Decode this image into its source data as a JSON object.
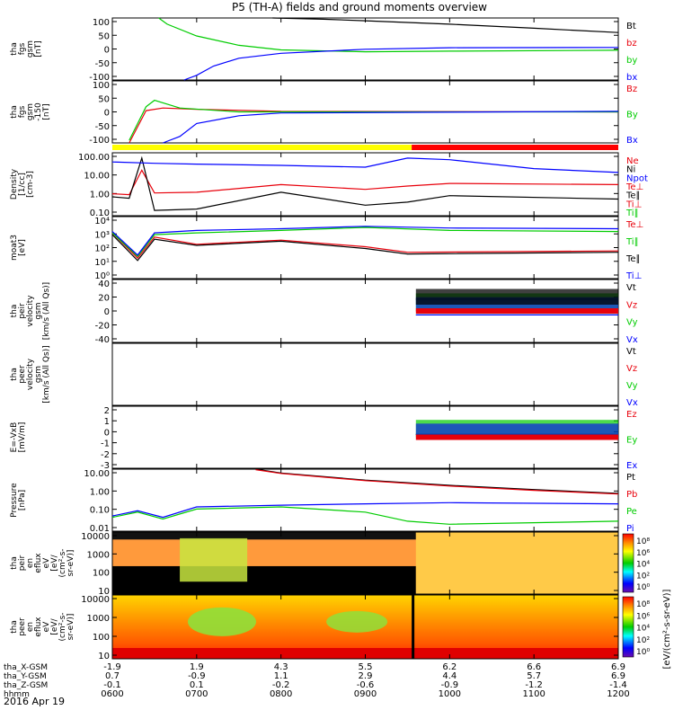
{
  "title": "P5 (TH-A) fields and ground moments overview",
  "date_label": "2016 Apr 19",
  "colors": {
    "black": "#000000",
    "red": "#e8000b",
    "green": "#00cc00",
    "blue": "#0000ff",
    "yellow": "#ffff00",
    "orange_red": "#ff0000",
    "cyan": "#00ffff"
  },
  "ephemeris": {
    "rows": [
      {
        "label": "tha_X-GSM",
        "values": [
          "-1.9",
          "1.9",
          "4.3",
          "5.5",
          "6.2",
          "6.6",
          "6.9"
        ]
      },
      {
        "label": "tha_Y-GSM",
        "values": [
          "0.7",
          "-0.9",
          "1.1",
          "2.9",
          "4.4",
          "5.7",
          "6.9"
        ]
      },
      {
        "label": "tha_Z-GSM",
        "values": [
          "-0.1",
          "0.1",
          "-0.2",
          "-0.6",
          "-0.9",
          "-1.2",
          "-1.4"
        ]
      },
      {
        "label": "hhmm",
        "values": [
          "0600",
          "0700",
          "0800",
          "0900",
          "1000",
          "1100",
          "1200"
        ]
      }
    ]
  },
  "chart_data": [
    {
      "type": "line",
      "id": "fgs",
      "ylabel": [
        "tha",
        "fgs",
        "gsm",
        "[nT]"
      ],
      "yticks": [
        "100",
        "50",
        "0",
        "-50",
        "-100"
      ],
      "ylim": [
        -100,
        100
      ],
      "series": [
        {
          "name": "Bt",
          "color": "#000000",
          "x": [
            7.9,
            8.5,
            9.0,
            10.0,
            11.0,
            12.0
          ],
          "y": [
            100,
            96,
            91,
            80,
            67,
            53
          ]
        },
        {
          "name": "bz",
          "color": "#e8000b",
          "x": [],
          "y": []
        },
        {
          "name": "by",
          "color": "#00cc00",
          "x": [
            6.55,
            6.65,
            7.0,
            7.5,
            8.0,
            9.0,
            10.0,
            12.0
          ],
          "y": [
            100,
            80,
            42,
            12,
            -3,
            -9,
            -7,
            -4
          ]
        },
        {
          "name": "bx",
          "color": "#0000ff",
          "x": [
            6.85,
            7.0,
            7.2,
            7.5,
            8.0,
            9.0,
            10.0,
            12.0
          ],
          "y": [
            -100,
            -85,
            -55,
            -30,
            -14,
            -1,
            4,
            5
          ]
        }
      ]
    },
    {
      "type": "line",
      "id": "fgs_zoom",
      "ylabel": [
        "tha",
        "fgs",
        "gsm",
        "-150",
        "[nT]"
      ],
      "yticks": [
        "100",
        "50",
        "0",
        "-50",
        "-100"
      ],
      "ylim": [
        -120,
        120
      ],
      "series": [
        {
          "name": "Bz",
          "color": "#e8000b",
          "x": [
            6.2,
            6.4,
            6.6,
            7.0,
            8.0,
            12.0
          ],
          "y": [
            -120,
            5,
            15,
            10,
            2,
            0
          ]
        },
        {
          "name": "By",
          "color": "#00cc00",
          "x": [
            6.2,
            6.4,
            6.5,
            6.8,
            7.5,
            12.0
          ],
          "y": [
            -110,
            20,
            45,
            15,
            0,
            0
          ]
        },
        {
          "name": "Bx",
          "color": "#0000ff",
          "x": [
            6.6,
            6.8,
            7.0,
            7.5,
            8.0,
            12.0
          ],
          "y": [
            -120,
            -95,
            -45,
            -15,
            -4,
            2
          ]
        }
      ]
    },
    {
      "type": "line",
      "id": "density",
      "ylabel": [
        "Density",
        "[1/cc]",
        "[cm-3]"
      ],
      "yticks": [
        "100.00",
        "10.00",
        "1.00",
        "0.10"
      ],
      "yscale": "log",
      "ylim": [
        0.05,
        200
      ],
      "series": [
        {
          "name": "Ne",
          "color": "#e8000b",
          "x": [
            6.0,
            6.2,
            6.35,
            6.5,
            7.0,
            8.0,
            9.0,
            9.5,
            10.0,
            12.0
          ],
          "y": [
            0.9,
            0.8,
            20,
            1.0,
            1.1,
            3.0,
            1.6,
            2.5,
            3.5,
            3.0
          ]
        },
        {
          "name": "Ni",
          "color": "#000000",
          "x": [
            6.0,
            6.2,
            6.35,
            6.5,
            7.0,
            8.0,
            9.0,
            9.5,
            10.0,
            12.0
          ],
          "y": [
            0.6,
            0.5,
            100,
            0.1,
            0.12,
            1.1,
            0.2,
            0.3,
            0.7,
            0.45
          ]
        },
        {
          "name": "Npot",
          "color": "#0000ff",
          "x": [
            6.0,
            6.5,
            7.0,
            8.0,
            9.0,
            9.5,
            10.0,
            11.0,
            12.0
          ],
          "y": [
            60,
            50,
            45,
            38,
            30,
            100,
            80,
            25,
            15
          ]
        },
        {
          "name": "Te⊥",
          "color": "#e8000b",
          "x": [],
          "y": []
        },
        {
          "name": "Te∥",
          "color": "#000000",
          "x": [],
          "y": []
        },
        {
          "name": "Ti⊥",
          "color": "#e8000b",
          "x": [],
          "y": []
        },
        {
          "name": "Ti∥",
          "color": "#00cc00",
          "x": [],
          "y": []
        }
      ]
    },
    {
      "type": "line",
      "id": "temperature",
      "ylabel": [
        "moat3",
        "[eV]"
      ],
      "yticks": [
        "10⁴",
        "10³",
        "10²",
        "10¹",
        "10⁰"
      ],
      "yscale": "log",
      "ylim": [
        1,
        30000
      ],
      "series": [
        {
          "name": "Te⊥",
          "color": "#e8000b",
          "x": [
            6.0,
            6.3,
            6.5,
            7.0,
            8.0,
            9.0,
            9.5,
            12.0
          ],
          "y": [
            2000,
            30,
            1000,
            300,
            600,
            200,
            80,
            100
          ]
        },
        {
          "name": "Ti∥",
          "color": "#00cc00",
          "x": [
            6.0,
            6.3,
            6.5,
            7.0,
            8.0,
            9.0,
            10.0,
            12.0
          ],
          "y": [
            2000,
            40,
            1500,
            2000,
            3000,
            5000,
            3000,
            2500
          ]
        },
        {
          "name": "Te∥",
          "color": "#000000",
          "x": [
            6.0,
            6.3,
            6.5,
            7.0,
            8.0,
            9.0,
            9.5,
            12.0
          ],
          "y": [
            1500,
            20,
            700,
            250,
            500,
            150,
            60,
            80
          ]
        },
        {
          "name": "Ti⊥",
          "color": "#0000ff",
          "x": [
            6.0,
            6.3,
            6.5,
            7.0,
            8.0,
            9.0,
            10.0,
            12.0
          ],
          "y": [
            2500,
            50,
            2000,
            3000,
            4000,
            6000,
            4500,
            4000
          ]
        }
      ]
    },
    {
      "type": "line",
      "id": "peir_velocity",
      "ylabel": [
        "tha",
        "peir",
        "velocity",
        "gsm",
        "[km/s (All Qs)]"
      ],
      "yticks": [
        "40",
        "20",
        "0",
        "-20",
        "-40"
      ],
      "ylim": [
        -40,
        40
      ],
      "series": [
        {
          "name": "Vt",
          "color": "#000000",
          "x": [
            9.6,
            12.0
          ],
          "y": [
            15,
            15
          ]
        },
        {
          "name": "Vz",
          "color": "#e8000b",
          "x": [
            9.6,
            12.0
          ],
          "y": [
            0,
            0
          ]
        },
        {
          "name": "Vy",
          "color": "#00cc00",
          "x": [
            9.6,
            12.0
          ],
          "y": [
            -5,
            -5
          ]
        },
        {
          "name": "Vx",
          "color": "#0000ff",
          "x": [
            9.6,
            12.0
          ],
          "y": [
            -5,
            -5
          ]
        }
      ]
    },
    {
      "type": "line",
      "id": "peer_velocity",
      "ylabel": [
        "tha",
        "peer",
        "velocity",
        "gsm",
        "[km/s (All Qs)]"
      ],
      "yticks": [],
      "ylim": [
        -40,
        40
      ],
      "series": [
        {
          "name": "Vt",
          "color": "#000000",
          "x": [],
          "y": []
        },
        {
          "name": "Vz",
          "color": "#e8000b",
          "x": [],
          "y": []
        },
        {
          "name": "Vy",
          "color": "#00cc00",
          "x": [],
          "y": []
        },
        {
          "name": "Vx",
          "color": "#0000ff",
          "x": [],
          "y": []
        }
      ]
    },
    {
      "type": "line",
      "id": "efield",
      "ylabel": [
        "E=-VxB",
        "[mV/m]"
      ],
      "yticks": [
        "2",
        "1",
        "0",
        "-1",
        "-2",
        "-3"
      ],
      "ylim": [
        -3,
        2.5
      ],
      "series": [
        {
          "name": "Ez",
          "color": "#e8000b",
          "x": [
            9.6,
            12.0
          ],
          "y": [
            0,
            0
          ]
        },
        {
          "name": "Ey",
          "color": "#00cc00",
          "x": [
            9.6,
            12.0
          ],
          "y": [
            0,
            0
          ]
        },
        {
          "name": "Ex",
          "color": "#0000ff",
          "x": [
            9.6,
            12.0
          ],
          "y": [
            0,
            0
          ]
        }
      ]
    },
    {
      "type": "line",
      "id": "pressure",
      "ylabel": [
        "Pressure",
        "[nPa]"
      ],
      "yticks": [
        "10.00",
        "1.00",
        "0.10",
        "0.01"
      ],
      "yscale": "log",
      "ylim": [
        0.008,
        30
      ],
      "series": [
        {
          "name": "Pt",
          "color": "#000000",
          "x": [
            7.7,
            8.0,
            9.0,
            10.0,
            11.0,
            12.0
          ],
          "y": [
            30,
            18,
            7,
            3.5,
            2,
            1.2
          ]
        },
        {
          "name": "Pb",
          "color": "#e8000b",
          "x": [
            7.7,
            8.0,
            9.0,
            10.0,
            11.0,
            12.0
          ],
          "y": [
            28,
            17,
            6.5,
            3.2,
            1.8,
            1.1
          ]
        },
        {
          "name": "Pe",
          "color": "#00cc00",
          "x": [
            6.0,
            6.3,
            6.6,
            7.0,
            8.0,
            9.0,
            9.5,
            10.0,
            12.0
          ],
          "y": [
            0.05,
            0.1,
            0.04,
            0.15,
            0.2,
            0.1,
            0.03,
            0.02,
            0.03
          ]
        },
        {
          "name": "Pi",
          "color": "#0000ff",
          "x": [
            6.0,
            6.3,
            6.6,
            7.0,
            8.0,
            9.0,
            10.0,
            12.0
          ],
          "y": [
            0.06,
            0.12,
            0.05,
            0.2,
            0.25,
            0.3,
            0.35,
            0.3
          ]
        }
      ]
    },
    {
      "type": "heatmap",
      "id": "peir_spectrogram",
      "ylabel": [
        "tha",
        "peir",
        "en",
        "eflux",
        "eV",
        "[eV/",
        "(cm²-s-",
        "sr-eV)]"
      ],
      "yticks": [
        "10000",
        "1000",
        "100",
        "10"
      ],
      "yscale": "log",
      "colorbar_ticks": [
        "10⁸",
        "10⁶",
        "10⁴",
        "10²",
        "10⁰"
      ]
    },
    {
      "type": "heatmap",
      "id": "peer_spectrogram",
      "ylabel": [
        "tha",
        "peer",
        "en",
        "eflux",
        "eV",
        "[eV/",
        "(cm²-s-",
        "sr-eV)]"
      ],
      "yticks": [
        "10000",
        "1000",
        "100",
        "10"
      ],
      "yscale": "log",
      "colorbar_ticks": [
        "10⁸",
        "10⁶",
        "10⁴",
        "10²",
        "10⁰"
      ],
      "colorbar_label": "[eV/(cm²-s-sr-eV)]"
    }
  ]
}
